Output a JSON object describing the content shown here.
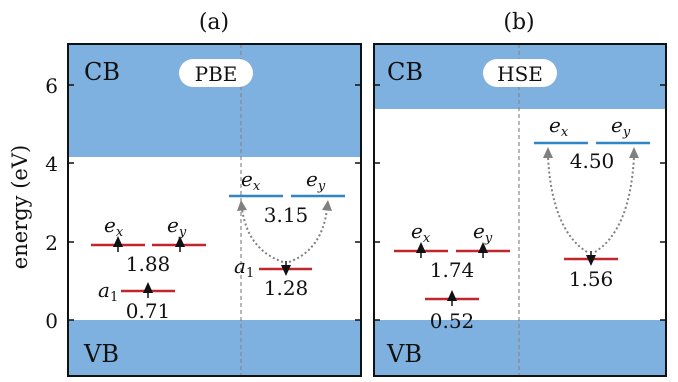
{
  "y_axis": {
    "label": "energy (eV)",
    "ticks": [
      "0",
      "2",
      "4",
      "6"
    ]
  },
  "panels": [
    {
      "id": "a",
      "tag": "(a)",
      "method": "PBE",
      "cb_label": "CB",
      "vb_label": "VB",
      "cbm_eV": 4.1,
      "spin_up": {
        "levels": [
          {
            "orbital": "a",
            "sub": "1",
            "energy_eV": 0.71,
            "value_label": "0.71",
            "arrow": "up"
          },
          {
            "orbital": "e",
            "sub": "x",
            "energy_eV": 1.88,
            "value_label": "",
            "arrow": "up"
          },
          {
            "orbital": "e",
            "sub": "y",
            "energy_eV": 1.88,
            "value_label": "1.88",
            "arrow": "up"
          }
        ]
      },
      "spin_down": {
        "levels": [
          {
            "orbital": "a",
            "sub": "1",
            "energy_eV": 1.28,
            "value_label": "1.28",
            "arrow": "down"
          },
          {
            "orbital": "e",
            "sub": "x",
            "energy_eV": 3.15,
            "value_label": "",
            "arrow": "none"
          },
          {
            "orbital": "e",
            "sub": "y",
            "energy_eV": 3.15,
            "value_label": "3.15",
            "arrow": "none"
          }
        ]
      }
    },
    {
      "id": "b",
      "tag": "(b)",
      "method": "HSE",
      "cb_label": "CB",
      "vb_label": "VB",
      "cbm_eV": 5.4,
      "spin_up": {
        "levels": [
          {
            "orbital": "",
            "sub": "",
            "energy_eV": 0.52,
            "value_label": "0.52",
            "arrow": "up"
          },
          {
            "orbital": "e",
            "sub": "x",
            "energy_eV": 1.74,
            "value_label": "",
            "arrow": "up"
          },
          {
            "orbital": "e",
            "sub": "y",
            "energy_eV": 1.74,
            "value_label": "1.74",
            "arrow": "up"
          }
        ]
      },
      "spin_down": {
        "levels": [
          {
            "orbital": "",
            "sub": "",
            "energy_eV": 1.56,
            "value_label": "1.56",
            "arrow": "down"
          },
          {
            "orbital": "e",
            "sub": "x",
            "energy_eV": 4.5,
            "value_label": "",
            "arrow": "none"
          },
          {
            "orbital": "e",
            "sub": "y",
            "energy_eV": 4.5,
            "value_label": "4.50",
            "arrow": "none"
          }
        ]
      }
    }
  ],
  "colors": {
    "band_fill": "#7eb1df",
    "occupied_level": "#c0272d",
    "empty_level": "#2f86c7",
    "frame": "#111111",
    "divider": "#888888",
    "transition_arrow": "#808080"
  }
}
